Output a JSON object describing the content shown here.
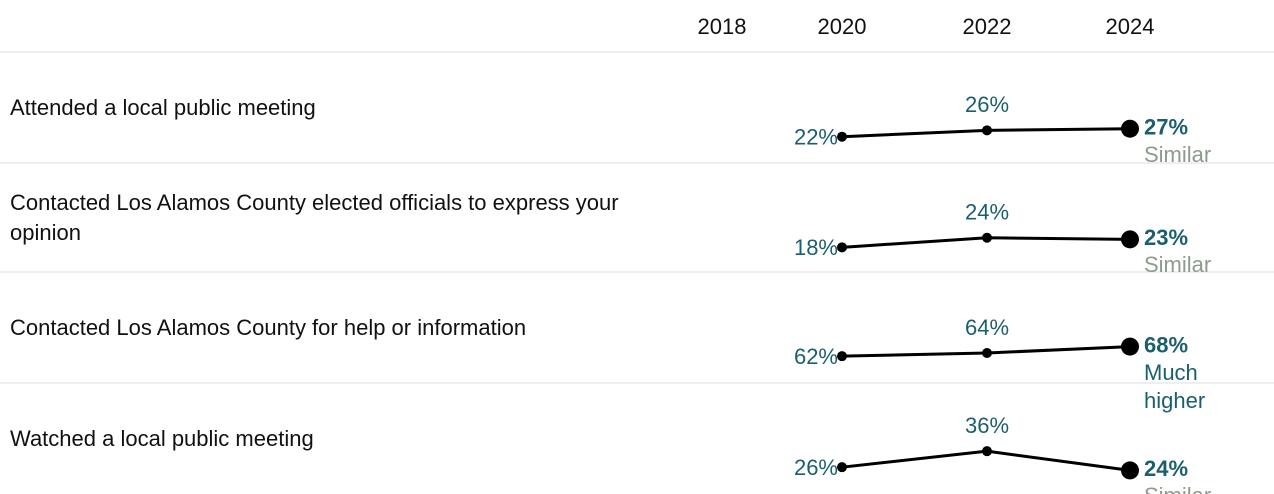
{
  "chart_data": {
    "type": "line",
    "categories": [
      "2018",
      "2020",
      "2022",
      "2024"
    ],
    "line_color": "#000000",
    "label_color": "#1b5f6e",
    "series": [
      {
        "name": "Attended a local public meeting",
        "values": [
          null,
          22,
          26,
          27
        ],
        "value_labels": [
          null,
          "22%",
          "26%",
          "27%"
        ],
        "comparison": "Similar",
        "comparison_color": "#8d9b8d"
      },
      {
        "name": "Contacted Los Alamos County elected officials to express your opinion",
        "values": [
          null,
          18,
          24,
          23
        ],
        "value_labels": [
          null,
          "18%",
          "24%",
          "23%"
        ],
        "comparison": "Similar",
        "comparison_color": "#8d9b8d"
      },
      {
        "name": "Contacted Los Alamos County for help or information",
        "values": [
          null,
          62,
          64,
          68
        ],
        "value_labels": [
          null,
          "62%",
          "64%",
          "68%"
        ],
        "comparison": "Much higher",
        "comparison_color": "#1b5f6e"
      },
      {
        "name": "Watched a local public meeting",
        "values": [
          null,
          26,
          36,
          24
        ],
        "value_labels": [
          null,
          "26%",
          "36%",
          "24%"
        ],
        "comparison": "Similar",
        "comparison_color": "#8d9b8d"
      }
    ]
  }
}
